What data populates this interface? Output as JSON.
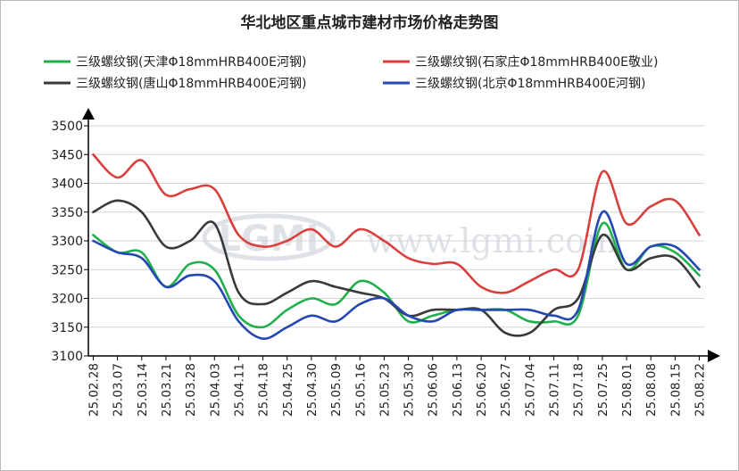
{
  "chart_data": {
    "type": "line",
    "title": "华北地区重点城市建材市场价格走势图",
    "watermark": {
      "logo": "LGMI",
      "text": "www.lgmi.com"
    },
    "x": [
      "25.02.28",
      "25.03.07",
      "25.03.14",
      "25.03.21",
      "25.03.28",
      "25.04.03",
      "25.04.11",
      "25.04.18",
      "25.04.25",
      "25.04.30",
      "25.05.09",
      "25.05.16",
      "25.05.23",
      "25.05.30",
      "25.06.06",
      "25.06.13",
      "25.06.20",
      "25.06.27",
      "25.07.04",
      "25.07.11",
      "25.07.18",
      "25.07.25",
      "25.08.01",
      "25.08.08",
      "25.08.15",
      "25.08.22"
    ],
    "ylim": [
      3100,
      3500
    ],
    "yticks": [
      3100,
      3150,
      3200,
      3250,
      3300,
      3350,
      3400,
      3450,
      3500
    ],
    "grid": true,
    "legend_position": "top",
    "series": [
      {
        "name": "三级螺纹钢(天津Φ18mmHRB400E河钢)",
        "color": "#1fb04c",
        "values": [
          3310,
          3280,
          3280,
          3220,
          3260,
          3250,
          3170,
          3150,
          3180,
          3200,
          3190,
          3230,
          3210,
          3160,
          3170,
          3180,
          3180,
          3180,
          3160,
          3160,
          3170,
          3330,
          3250,
          3290,
          3280,
          3240
        ]
      },
      {
        "name": "三级螺纹钢(石家庄Φ18mmHRB400E敬业)",
        "color": "#d9403d",
        "values": [
          3450,
          3410,
          3440,
          3380,
          3390,
          3390,
          3310,
          3290,
          3300,
          3320,
          3290,
          3320,
          3300,
          3270,
          3260,
          3260,
          3220,
          3210,
          3230,
          3250,
          3250,
          3420,
          3330,
          3360,
          3370,
          3310
        ]
      },
      {
        "name": "三级螺纹钢(唐山Φ18mmHRB400E河钢)",
        "color": "#3a3a3a",
        "values": [
          3350,
          3370,
          3350,
          3290,
          3300,
          3330,
          3210,
          3190,
          3210,
          3230,
          3220,
          3210,
          3200,
          3170,
          3180,
          3180,
          3180,
          3140,
          3140,
          3180,
          3200,
          3310,
          3250,
          3270,
          3270,
          3220
        ]
      },
      {
        "name": "三级螺纹钢(北京Φ18mmHRB400E河钢)",
        "color": "#2447b3",
        "values": [
          3300,
          3280,
          3270,
          3220,
          3240,
          3230,
          3160,
          3130,
          3150,
          3170,
          3160,
          3190,
          3200,
          3170,
          3160,
          3180,
          3180,
          3180,
          3180,
          3170,
          3180,
          3350,
          3260,
          3290,
          3290,
          3250
        ]
      }
    ]
  }
}
